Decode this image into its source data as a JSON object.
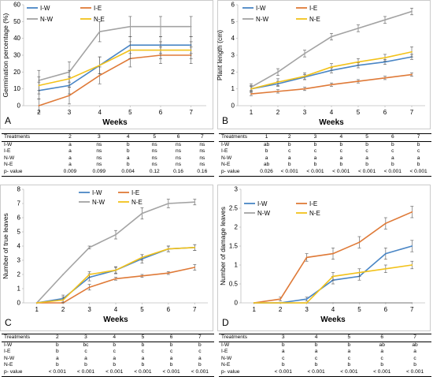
{
  "colors": {
    "I-W": "#4a86c5",
    "I-E": "#df7a38",
    "N-W": "#a3a3a3",
    "N-E": "#f2c21b"
  },
  "chart_data": [
    {
      "type": "line",
      "panel_letter": "A",
      "xlabel": "Weeks",
      "ylabel": "Germination percentage (%)",
      "x": [
        2,
        3,
        4,
        5,
        6,
        7
      ],
      "xlim": [
        1.5,
        7.5
      ],
      "xticks": [
        2,
        3,
        4,
        5,
        6,
        7
      ],
      "ylim": [
        0,
        60
      ],
      "yticks": [
        0,
        10,
        20,
        30,
        40,
        50,
        60
      ],
      "legend": "top-left",
      "series": [
        {
          "name": "I-W",
          "values": [
            9,
            12,
            24,
            36,
            36,
            36
          ],
          "err": [
            5,
            5,
            5,
            5,
            5,
            5
          ]
        },
        {
          "name": "I-E",
          "values": [
            0,
            6,
            18,
            28,
            30,
            30
          ],
          "err": [
            4,
            5,
            5,
            5,
            5,
            5
          ]
        },
        {
          "name": "N-W",
          "values": [
            15,
            20,
            44,
            47,
            47,
            47
          ],
          "err": [
            6,
            6,
            6,
            6,
            6,
            6
          ]
        },
        {
          "name": "N-E",
          "values": [
            12,
            16,
            24,
            33,
            33,
            33
          ],
          "err": [
            5,
            5,
            5,
            5,
            5,
            5
          ]
        }
      ]
    },
    {
      "type": "line",
      "panel_letter": "B",
      "xlabel": "Weeks",
      "ylabel": "Plant length  (cm)",
      "x": [
        1,
        2,
        3,
        4,
        5,
        6,
        7
      ],
      "xlim": [
        0.5,
        7.5
      ],
      "xticks": [
        1,
        2,
        3,
        4,
        5,
        6,
        7
      ],
      "ylim": [
        0,
        6
      ],
      "yticks": [
        0,
        1,
        2,
        3,
        4,
        5,
        6
      ],
      "legend": "top-left",
      "series": [
        {
          "name": "I-W",
          "values": [
            1.0,
            1.3,
            1.7,
            2.1,
            2.4,
            2.6,
            2.9
          ],
          "err": [
            0.15,
            0.15,
            0.15,
            0.15,
            0.15,
            0.15,
            0.15
          ]
        },
        {
          "name": "I-E",
          "values": [
            0.7,
            0.85,
            1.0,
            1.25,
            1.45,
            1.65,
            1.85
          ],
          "err": [
            0.1,
            0.1,
            0.1,
            0.1,
            0.1,
            0.1,
            0.1
          ]
        },
        {
          "name": "N-W",
          "values": [
            1.1,
            2.0,
            3.1,
            4.1,
            4.6,
            5.1,
            5.6
          ],
          "err": [
            0.2,
            0.2,
            0.2,
            0.2,
            0.2,
            0.2,
            0.2
          ]
        },
        {
          "name": "N-E",
          "values": [
            1.0,
            1.4,
            1.75,
            2.3,
            2.6,
            2.85,
            3.2
          ],
          "err": [
            0.2,
            0.2,
            0.2,
            0.2,
            0.2,
            0.2,
            0.3
          ]
        }
      ]
    },
    {
      "type": "line",
      "panel_letter": "C",
      "xlabel": "Weeks",
      "ylabel": "Number of true leaves",
      "x": [
        1,
        2,
        3,
        4,
        5,
        6,
        7
      ],
      "xlim": [
        0.5,
        7.5
      ],
      "xticks": [
        1,
        2,
        3,
        4,
        5,
        6,
        7
      ],
      "ylim": [
        0,
        8
      ],
      "yticks": [
        0,
        1,
        2,
        3,
        4,
        5,
        6,
        7,
        8
      ],
      "legend": "top-right",
      "series": [
        {
          "name": "I-W",
          "values": [
            0,
            0.3,
            1.8,
            2.3,
            3.1,
            3.8,
            3.9
          ],
          "err": [
            0,
            0.25,
            0.25,
            0.25,
            0.3,
            0.2,
            0.2
          ]
        },
        {
          "name": "I-E",
          "values": [
            0,
            0,
            1.1,
            1.7,
            1.9,
            2.1,
            2.5
          ],
          "err": [
            0,
            0,
            0.2,
            0.1,
            0.1,
            0.1,
            0.2
          ]
        },
        {
          "name": "N-W",
          "values": [
            0,
            2.0,
            3.9,
            4.8,
            6.3,
            7.0,
            7.1
          ],
          "err": [
            0,
            0,
            0.1,
            0.3,
            0.4,
            0.3,
            0.2
          ]
        },
        {
          "name": "N-E",
          "values": [
            0,
            0.2,
            2.0,
            2.3,
            3.2,
            3.8,
            3.9
          ],
          "err": [
            0,
            0.2,
            0.2,
            0.2,
            0.2,
            0.2,
            0.2
          ]
        }
      ]
    },
    {
      "type": "line",
      "panel_letter": "D",
      "xlabel": "Weeks",
      "ylabel": "Number of damage leaves",
      "x": [
        1,
        2,
        3,
        4,
        5,
        6,
        7
      ],
      "xlim": [
        0.5,
        7.5
      ],
      "xticks": [
        1,
        2,
        3,
        4,
        5,
        6,
        7
      ],
      "ylim": [
        0,
        3
      ],
      "yticks": [
        0,
        0.5,
        1,
        1.5,
        2,
        2.5,
        3
      ],
      "legend": "top-left",
      "series": [
        {
          "name": "I-W",
          "values": [
            0,
            0,
            0.1,
            0.6,
            0.7,
            1.3,
            1.5
          ],
          "err": [
            0,
            0,
            0.05,
            0.1,
            0.1,
            0.15,
            0.15
          ]
        },
        {
          "name": "I-E",
          "values": [
            0,
            0.1,
            1.2,
            1.3,
            1.6,
            2.1,
            2.4
          ],
          "err": [
            0,
            0.05,
            0.1,
            0.15,
            0.15,
            0.15,
            0.15
          ]
        },
        {
          "name": "N-W",
          "values": [
            0,
            0,
            0,
            0,
            0,
            0,
            0
          ],
          "err": [
            0,
            0,
            0,
            0,
            0,
            0,
            0
          ]
        },
        {
          "name": "N-E",
          "values": [
            0,
            0,
            0,
            0.7,
            0.8,
            0.9,
            1.0
          ],
          "err": [
            0,
            0,
            0,
            0.1,
            0.1,
            0.1,
            0.1
          ]
        }
      ]
    }
  ],
  "tables": [
    {
      "headers": [
        "Treatments",
        "2",
        "3",
        "4",
        "5",
        "6",
        "7"
      ],
      "rows": [
        [
          "I-W",
          "a",
          "ns",
          "b",
          "ns",
          "ns",
          "ns"
        ],
        [
          "I-E",
          "a",
          "ns",
          "b",
          "ns",
          "ns",
          "ns"
        ],
        [
          "N-W",
          "a",
          "ns",
          "a",
          "ns",
          "ns",
          "ns"
        ],
        [
          "N-E",
          "a",
          "ns",
          "b",
          "ns",
          "ns",
          "ns"
        ],
        [
          "p- value",
          "0.009",
          "0.099",
          "0.004",
          "0.12",
          "0.16",
          "0.16"
        ]
      ]
    },
    {
      "headers": [
        "Treatments",
        "1",
        "2",
        "3",
        "4",
        "5",
        "6",
        "7"
      ],
      "rows": [
        [
          "I-W",
          "ab",
          "b",
          "b",
          "b",
          "b",
          "b",
          "b"
        ],
        [
          "I-E",
          "b",
          "c",
          "c",
          "c",
          "c",
          "c",
          "c"
        ],
        [
          "N-W",
          "a",
          "a",
          "a",
          "a",
          "a",
          "a",
          "a"
        ],
        [
          "N-E",
          "ab",
          "b",
          "b",
          "b",
          "b",
          "b",
          "b"
        ],
        [
          "p- value",
          "0.026",
          "< 0.001",
          "< 0.001",
          "< 0.001",
          "< 0.001",
          "< 0.001",
          "< 0.001"
        ]
      ]
    },
    {
      "headers": [
        "Treatments",
        "2",
        "3",
        "4",
        "5",
        "6",
        "7"
      ],
      "rows": [
        [
          "I-W",
          "b",
          "bc",
          "b",
          "b",
          "b",
          "b"
        ],
        [
          "I-E",
          "b",
          "c",
          "c",
          "c",
          "c",
          "c"
        ],
        [
          "N-W",
          "a",
          "a",
          "a",
          "a",
          "a",
          "a"
        ],
        [
          "N-E",
          "b",
          "b",
          "b",
          "b",
          "b",
          "b"
        ],
        [
          "p- value",
          "< 0.001",
          "< 0.001",
          "< 0.001",
          "< 0.001",
          "< 0.001",
          "< 0.001"
        ]
      ]
    },
    {
      "headers": [
        "Treatments",
        "3",
        "4",
        "5",
        "6",
        "7"
      ],
      "rows": [
        [
          "I-W",
          "b",
          "b",
          "b",
          "ab",
          "ab"
        ],
        [
          "I-E",
          "a",
          "a",
          "a",
          "a",
          "a"
        ],
        [
          "N-W",
          "c",
          "c",
          "c",
          "c",
          "c"
        ],
        [
          "N-E",
          "b",
          "b",
          "b",
          "b",
          "b"
        ],
        [
          "p- value",
          "< 0.001",
          "< 0.001",
          "< 0.001",
          "< 0.001",
          "< 0.001"
        ]
      ]
    }
  ]
}
